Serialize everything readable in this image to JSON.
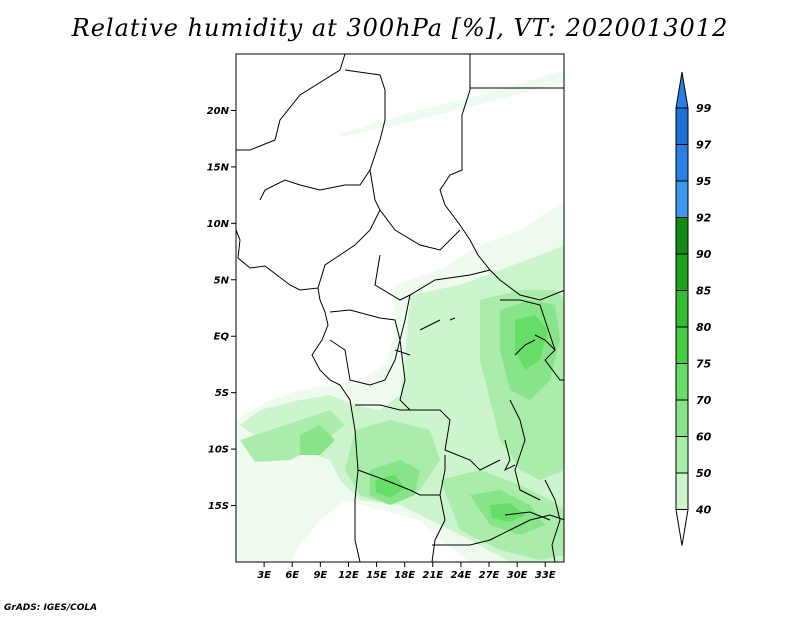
{
  "title": "Relative humidity at 300hPa [%], VT: 2020013012",
  "credit": "GrADS: IGES/COLA",
  "map": {
    "lat_ticks": [
      "20N",
      "15N",
      "10N",
      "5N",
      "EQ",
      "5S",
      "10S",
      "15S"
    ],
    "lon_ticks": [
      "3E",
      "6E",
      "9E",
      "12E",
      "15E",
      "18E",
      "21E",
      "24E",
      "27E",
      "30E",
      "33E"
    ],
    "lat_values": [
      20,
      15,
      10,
      5,
      0,
      -5,
      -10,
      -15
    ],
    "lon_values": [
      3,
      6,
      9,
      12,
      15,
      18,
      21,
      24,
      27,
      30,
      33
    ],
    "extent": {
      "lon": [
        0,
        35
      ],
      "lat": [
        -20,
        25
      ]
    }
  },
  "colorbar": {
    "levels": [
      "99",
      "97",
      "95",
      "92",
      "90",
      "85",
      "80",
      "75",
      "70",
      "60",
      "50",
      "40"
    ],
    "colors": [
      "#1e6fd6",
      "#2a7fe6",
      "#3d97ec",
      "#118b11",
      "#1fa31f",
      "#33bb33",
      "#44cc44",
      "#66dd66",
      "#88e488",
      "#aaecaa",
      "#cdf5cd",
      "#eefbee"
    ],
    "upper_triangle_color": "#2a7fe6",
    "lower_triangle_color": "#ffffff"
  }
}
